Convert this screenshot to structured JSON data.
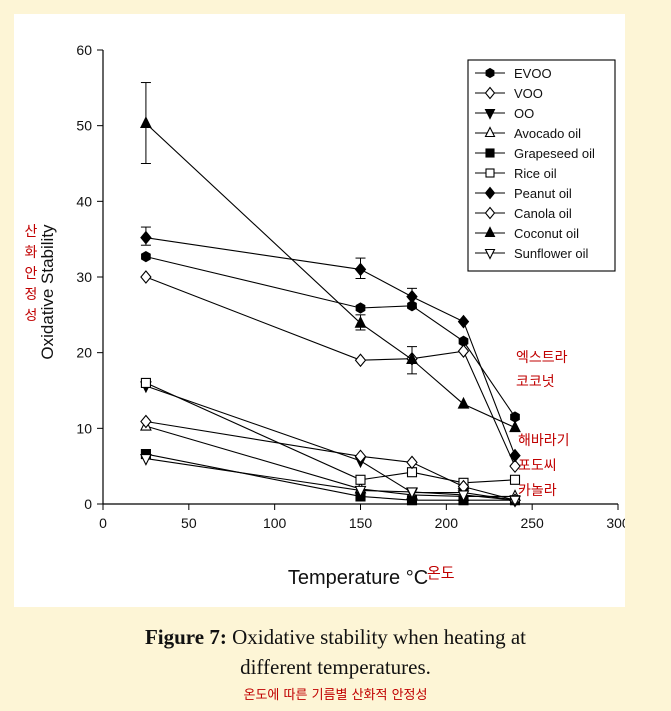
{
  "chart_data": {
    "type": "line",
    "xlabel": "Temperature °C",
    "ylabel": "Oxidative Stability",
    "xlim": [
      0,
      300
    ],
    "ylim": [
      0,
      60
    ],
    "xticks": [
      0,
      50,
      100,
      150,
      200,
      250,
      300
    ],
    "yticks": [
      0,
      10,
      20,
      30,
      40,
      50,
      60
    ],
    "x": [
      25,
      150,
      180,
      210,
      240
    ],
    "legend_position": "top-right",
    "series": [
      {
        "name": "EVOO",
        "marker": "hexagon-filled",
        "values": [
          32.7,
          25.9,
          26.2,
          21.5,
          11.5
        ]
      },
      {
        "name": "VOO",
        "marker": "diamond-open",
        "values": [
          30.0,
          19.0,
          19.2,
          20.2,
          5.0
        ]
      },
      {
        "name": "OO",
        "marker": "triangle-down-filled",
        "values": [
          15.6,
          5.7,
          1.5,
          1.5,
          0.5
        ]
      },
      {
        "name": "Avocado oil",
        "marker": "triangle-up-open",
        "values": [
          10.3,
          2.0,
          1.2,
          1.0,
          1.0
        ]
      },
      {
        "name": "Grapeseed oil",
        "marker": "square-filled",
        "values": [
          6.6,
          1.0,
          0.5,
          0.5,
          0.5
        ]
      },
      {
        "name": "Rice oil",
        "marker": "square-open",
        "values": [
          16.0,
          3.2,
          4.2,
          2.8,
          3.2
        ]
      },
      {
        "name": "Peanut oil",
        "marker": "diamond-filled",
        "values": [
          35.2,
          31.0,
          27.4,
          24.1,
          6.4
        ]
      },
      {
        "name": "Canola oil",
        "marker": "diamond-open",
        "values": [
          10.9,
          6.3,
          5.5,
          2.3,
          0.5
        ]
      },
      {
        "name": "Coconut oil",
        "marker": "triangle-up-filled",
        "values": [
          50.3,
          23.9,
          19.1,
          13.2,
          10.1
        ]
      },
      {
        "name": "Sunflower oil",
        "marker": "triangle-down-open",
        "values": [
          6.0,
          1.8,
          1.6,
          1.2,
          0.5
        ]
      }
    ],
    "error_bars": [
      {
        "series": "Coconut oil",
        "x": 25,
        "low": 45.0,
        "high": 55.7
      },
      {
        "series": "Peanut oil",
        "x": 25,
        "low": 34.2,
        "high": 36.6
      },
      {
        "series": "Peanut oil",
        "x": 150,
        "low": 29.8,
        "high": 32.5
      },
      {
        "series": "EVOO",
        "x": 180,
        "low": 26.0,
        "high": 28.5
      },
      {
        "series": "Coconut oil",
        "x": 180,
        "low": 17.2,
        "high": 20.8
      },
      {
        "series": "Coconut oil",
        "x": 150,
        "low": 23.0,
        "high": 25.0
      }
    ]
  },
  "annotations": {
    "ylabel_ko": [
      "산",
      "화",
      "안",
      "정",
      "성"
    ],
    "xlabel_ko": "온도",
    "extra_virgin": "엑스트라",
    "coconut": "코코넛",
    "sunflower": "해바라기",
    "grapeseed": "포도씨",
    "canola": "카놀라"
  },
  "caption": {
    "label": "Figure 7:",
    "line1": "Oxidative stability when heating at",
    "line2": "different temperatures.",
    "korean": "온도에 따른 기름별 산화적 안정성"
  },
  "colors": {
    "background": "#fdf5d6",
    "annotation": "#c00000",
    "series": "#000000"
  }
}
